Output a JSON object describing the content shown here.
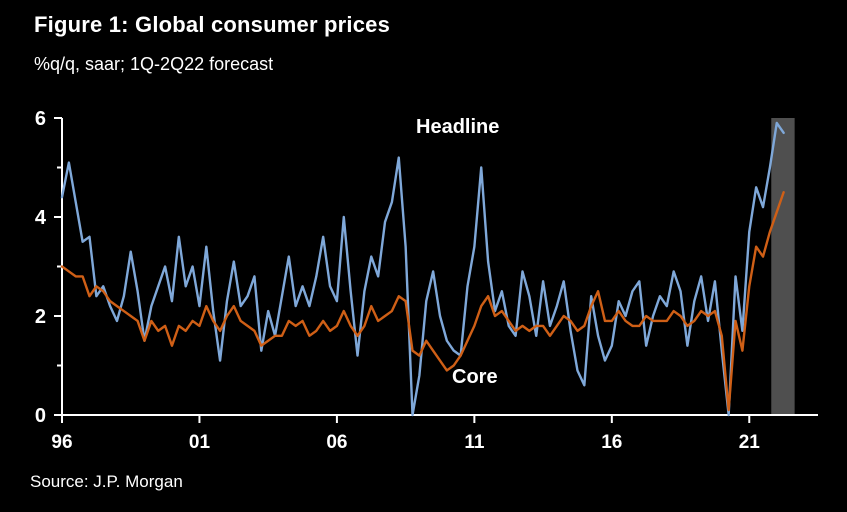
{
  "figure": {
    "title": "Figure 1: Global consumer prices",
    "subtitle": "%q/q, saar; 1Q-2Q22 forecast",
    "source": "Source: J.P. Morgan"
  },
  "colors": {
    "background": "#000000",
    "axis": "#ffffff",
    "text": "#ffffff",
    "headline": "#7fa8d9",
    "core": "#cf5f16",
    "forecast_band": "#4f4f4f"
  },
  "chart_data": {
    "type": "line",
    "title": "Figure 1: Global consumer prices",
    "subtitle": "%q/q, saar; 1Q-2Q22 forecast",
    "x_frequency": "quarterly",
    "x_start_year": 1996,
    "x_end": "2022Q2",
    "xlim": [
      1996,
      2023.5
    ],
    "ylim": [
      0,
      6
    ],
    "yticks": [
      0,
      2,
      4,
      6
    ],
    "yticks_minor": [
      1,
      3,
      5
    ],
    "xticks": [
      1996,
      2001,
      2006,
      2011,
      2016,
      2021
    ],
    "xtick_labels": [
      "96",
      "01",
      "06",
      "11",
      "16",
      "21"
    ],
    "grid": false,
    "legend_position": "annotations-on-chart",
    "forecast_band": {
      "from": 2021.8,
      "to": 2022.65,
      "note": "1Q-2Q22 forecast"
    },
    "series": [
      {
        "name": "Headline",
        "color": "#7fa8d9",
        "values": [
          4.4,
          5.1,
          4.3,
          3.5,
          3.6,
          2.4,
          2.6,
          2.2,
          1.9,
          2.4,
          3.3,
          2.5,
          1.5,
          2.2,
          2.6,
          3.0,
          2.3,
          3.6,
          2.6,
          3.0,
          2.2,
          3.4,
          2.1,
          1.1,
          2.3,
          3.1,
          2.2,
          2.4,
          2.8,
          1.3,
          2.1,
          1.6,
          2.4,
          3.2,
          2.2,
          2.6,
          2.2,
          2.8,
          3.6,
          2.6,
          2.3,
          4.0,
          2.5,
          1.2,
          2.5,
          3.2,
          2.8,
          3.9,
          4.3,
          5.2,
          3.4,
          0.0,
          0.8,
          2.3,
          2.9,
          2.0,
          1.5,
          1.3,
          1.2,
          2.6,
          3.4,
          5.0,
          3.1,
          2.1,
          2.5,
          1.8,
          1.6,
          2.9,
          2.4,
          1.6,
          2.7,
          1.8,
          2.2,
          2.7,
          1.7,
          0.9,
          0.6,
          2.4,
          1.6,
          1.1,
          1.4,
          2.3,
          2.0,
          2.5,
          2.7,
          1.4,
          2.0,
          2.4,
          2.2,
          2.9,
          2.5,
          1.4,
          2.3,
          2.8,
          1.9,
          2.7,
          1.3,
          0.0,
          2.8,
          1.7,
          3.7,
          4.6,
          4.2,
          5.0,
          5.9,
          5.7
        ]
      },
      {
        "name": "Core",
        "color": "#cf5f16",
        "values": [
          3.0,
          2.9,
          2.8,
          2.8,
          2.4,
          2.6,
          2.5,
          2.3,
          2.2,
          2.1,
          2.0,
          1.9,
          1.5,
          1.9,
          1.7,
          1.8,
          1.4,
          1.8,
          1.7,
          1.9,
          1.8,
          2.2,
          1.9,
          1.7,
          2.0,
          2.2,
          1.9,
          1.8,
          1.7,
          1.4,
          1.5,
          1.6,
          1.6,
          1.9,
          1.8,
          1.9,
          1.6,
          1.7,
          1.9,
          1.7,
          1.8,
          2.1,
          1.8,
          1.6,
          1.8,
          2.2,
          1.9,
          2.0,
          2.1,
          2.4,
          2.3,
          1.3,
          1.2,
          1.5,
          1.3,
          1.1,
          0.9,
          1.0,
          1.2,
          1.5,
          1.8,
          2.2,
          2.4,
          2.0,
          2.1,
          1.9,
          1.7,
          1.8,
          1.7,
          1.8,
          1.8,
          1.6,
          1.8,
          2.0,
          1.9,
          1.7,
          1.8,
          2.2,
          2.5,
          1.9,
          1.9,
          2.1,
          1.9,
          1.8,
          1.8,
          2.0,
          1.9,
          1.9,
          1.9,
          2.1,
          2.0,
          1.8,
          1.9,
          2.1,
          2.0,
          2.1,
          1.6,
          0.1,
          1.9,
          1.3,
          2.6,
          3.4,
          3.2,
          3.7,
          4.1,
          4.5
        ]
      }
    ]
  }
}
